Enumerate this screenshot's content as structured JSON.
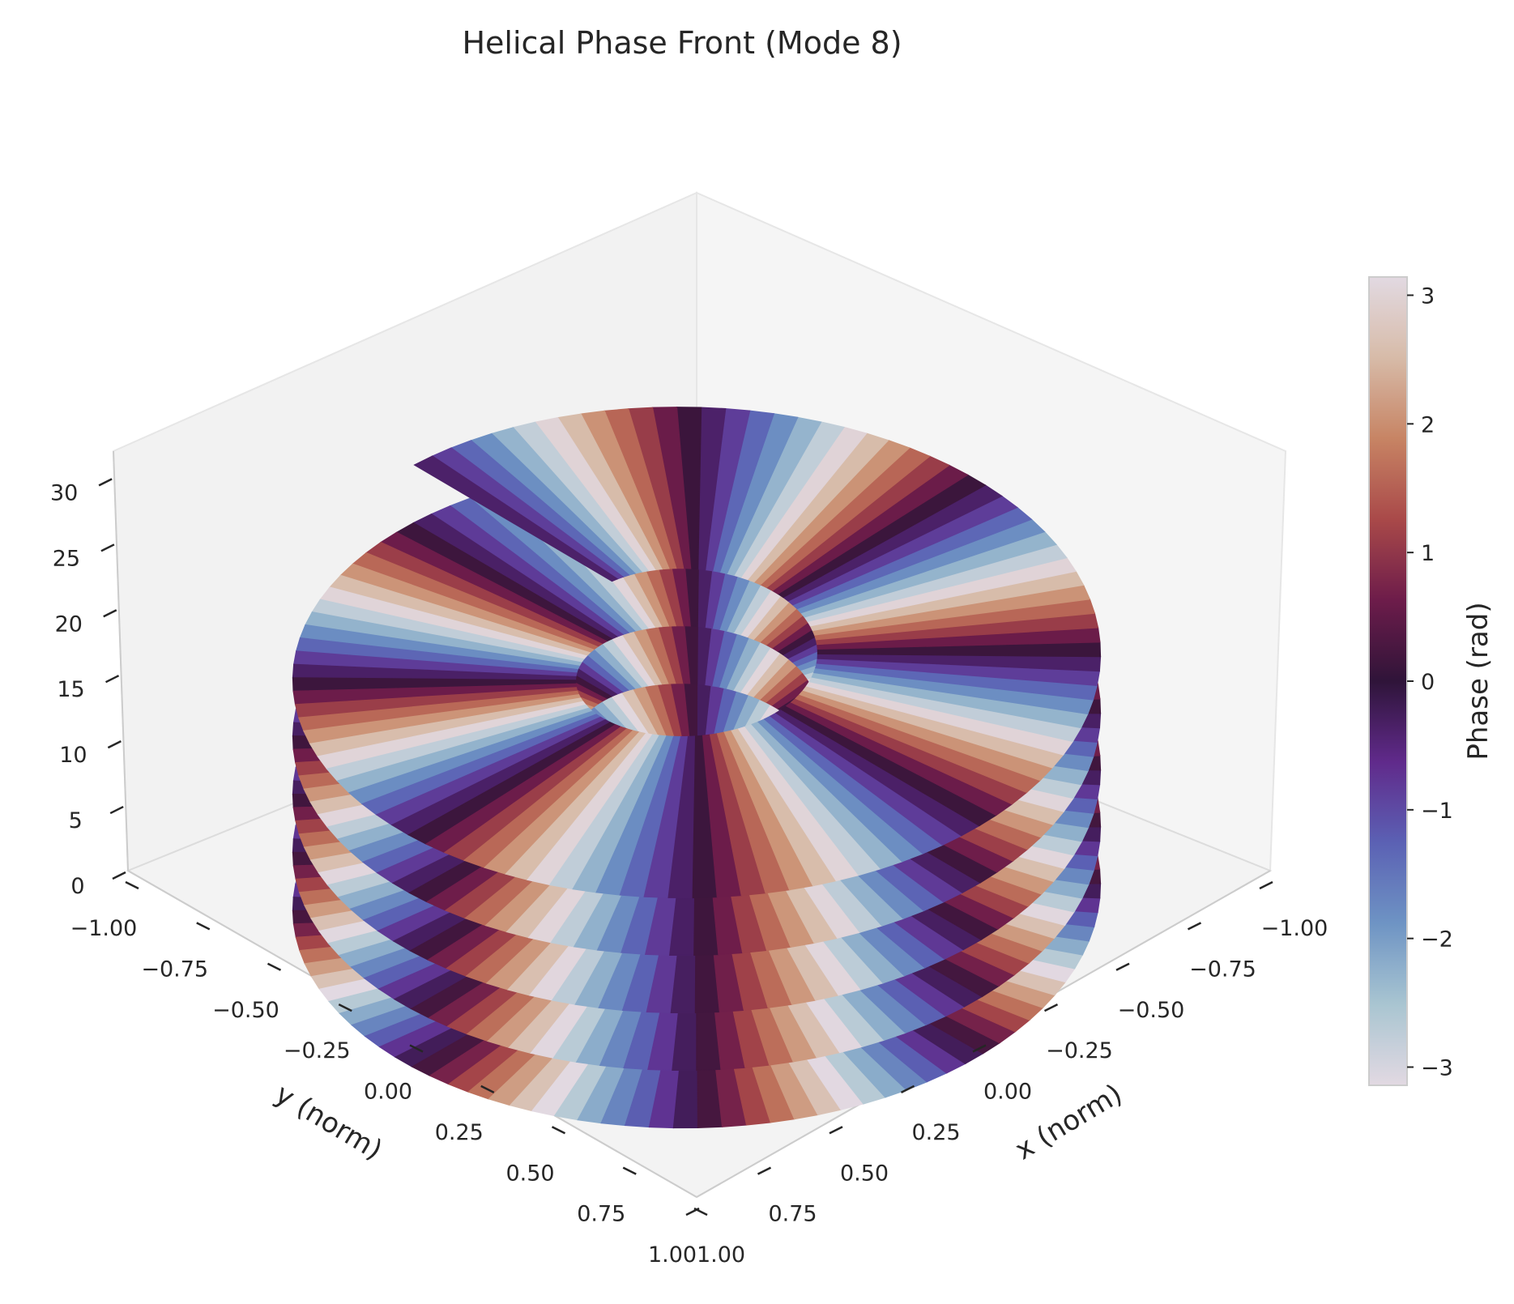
{
  "chart_data": {
    "type": "surface3d",
    "title": "Helical Phase Front (Mode 8)",
    "xlabel": "x (norm)",
    "ylabel": "y (norm)",
    "zlabel": "",
    "xlim": [
      -1.0,
      1.0
    ],
    "ylim": [
      -1.0,
      1.0
    ],
    "zlim": [
      0,
      32
    ],
    "x_ticks": [
      "−1.00",
      "−0.75",
      "−0.50",
      "−0.25",
      "0.00",
      "0.25",
      "0.50",
      "0.75",
      "1.00"
    ],
    "y_ticks": [
      "−1.00",
      "−0.75",
      "−0.50",
      "−0.25",
      "0.00",
      "0.25",
      "0.50",
      "0.75",
      "1.00"
    ],
    "z_ticks": [
      "0",
      "5",
      "10",
      "15",
      "20",
      "25",
      "30"
    ],
    "surface": {
      "description_formula": "z = theta (unwrapped azimuth), color = wrapped phase 8*theta",
      "mode": 8,
      "inner_radius": 0.3,
      "outer_radius": 1.0,
      "theta_range_rad": [
        0,
        31.4
      ]
    },
    "colorbar": {
      "label": "Phase (rad)",
      "colormap": "twilight",
      "ticks": [
        "−3",
        "−2",
        "−1",
        "0",
        "1",
        "2",
        "3"
      ],
      "range": [
        -3.14159,
        3.14159
      ]
    },
    "grid": false
  }
}
